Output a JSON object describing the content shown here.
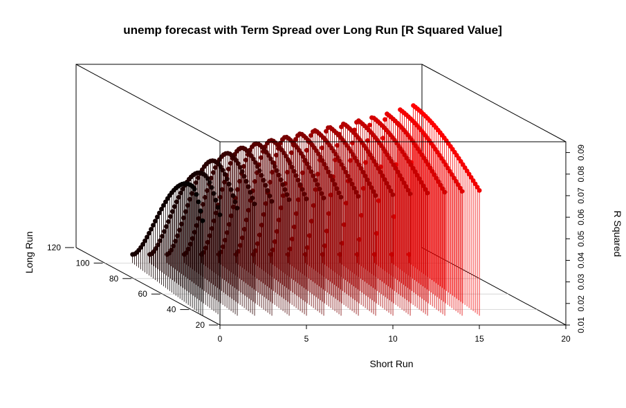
{
  "chart_data": {
    "type": "scatter3d",
    "title": "unemp forecast with Term Spread over Long Run [R Squared Value]",
    "xlabel": "Short Run",
    "ylabel": "Long Run",
    "zlabel": "R Squared",
    "x_ticks": [
      "0",
      "5",
      "10",
      "15",
      "20"
    ],
    "y_ticks": [
      "20",
      "40",
      "60",
      "80",
      "100",
      "120"
    ],
    "z_ticks": [
      "0.01",
      "0.02",
      "0.03",
      "0.04",
      "0.05",
      "0.06",
      "0.07",
      "0.08",
      "0.09"
    ],
    "xlim": [
      0,
      20
    ],
    "ylim": [
      20,
      120
    ],
    "zlim": [
      0.01,
      0.09
    ],
    "point_type": "h",
    "color_gradient": [
      "#000000",
      "#ff0000"
    ],
    "series": [
      {
        "short_run": 0,
        "long_run": [
          32,
          100
        ],
        "peak_long_run": 42,
        "peak_r2": 0.0665
      },
      {
        "short_run": 1,
        "long_run": [
          32,
          100
        ],
        "peak_long_run": 47,
        "peak_r2": 0.07
      },
      {
        "short_run": 2,
        "long_run": [
          32,
          100
        ],
        "peak_long_run": 52,
        "peak_r2": 0.074
      },
      {
        "short_run": 3,
        "long_run": [
          32,
          100
        ],
        "peak_long_run": 55,
        "peak_r2": 0.0765
      },
      {
        "short_run": 4,
        "long_run": [
          32,
          100
        ],
        "peak_long_run": 58,
        "peak_r2": 0.078
      },
      {
        "short_run": 5,
        "long_run": [
          32,
          100
        ],
        "peak_long_run": 61,
        "peak_r2": 0.079
      },
      {
        "short_run": 6,
        "long_run": [
          32,
          100
        ],
        "peak_long_run": 64,
        "peak_r2": 0.0795
      },
      {
        "short_run": 7,
        "long_run": [
          32,
          100
        ],
        "peak_long_run": 67,
        "peak_r2": 0.08
      },
      {
        "short_run": 8,
        "long_run": [
          32,
          100
        ],
        "peak_long_run": 70,
        "peak_r2": 0.0805
      },
      {
        "short_run": 9,
        "long_run": [
          32,
          100
        ],
        "peak_long_run": 73,
        "peak_r2": 0.081
      },
      {
        "short_run": 10,
        "long_run": [
          32,
          100
        ],
        "peak_long_run": 76,
        "peak_r2": 0.0815
      },
      {
        "short_run": 11,
        "long_run": [
          32,
          100
        ],
        "peak_long_run": 79,
        "peak_r2": 0.082
      },
      {
        "short_run": 12,
        "long_run": [
          32,
          100
        ],
        "peak_long_run": 82,
        "peak_r2": 0.0825
      },
      {
        "short_run": 13,
        "long_run": [
          32,
          100
        ],
        "peak_long_run": 85,
        "peak_r2": 0.083
      },
      {
        "short_run": 14,
        "long_run": [
          32,
          100
        ],
        "peak_long_run": 88,
        "peak_r2": 0.0835
      },
      {
        "short_run": 15,
        "long_run": [
          32,
          100
        ],
        "peak_long_run": 92,
        "peak_r2": 0.084
      },
      {
        "short_run": 16,
        "long_run": [
          32,
          100
        ],
        "peak_long_run": 96,
        "peak_r2": 0.0845
      }
    ]
  }
}
